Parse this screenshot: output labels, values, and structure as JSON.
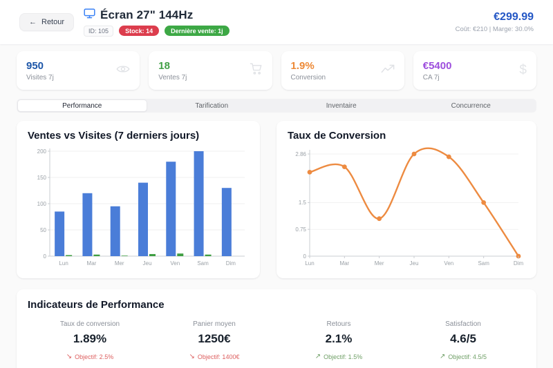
{
  "header": {
    "back_label": "Retour",
    "title": "Écran 27\" 144Hz",
    "id_label": "ID: 105",
    "stock_badge": "Stock: 14",
    "last_sale_badge": "Dernière vente: 1j",
    "price": "€299.99",
    "cost_margin": "Coût: €210 | Marge: 30.0%"
  },
  "stats": [
    {
      "value": "950",
      "label": "Visites 7j",
      "icon": "eye-icon",
      "color": "#1d56a8"
    },
    {
      "value": "18",
      "label": "Ventes 7j",
      "icon": "cart-icon",
      "color": "#43a047"
    },
    {
      "value": "1.9%",
      "label": "Conversion",
      "icon": "activity-icon",
      "color": "#ed8936"
    },
    {
      "value": "€5400",
      "label": "CA 7j",
      "icon": "dollar-icon",
      "color": "#9d4edd"
    }
  ],
  "tabs": [
    {
      "label": "Performance",
      "active": true
    },
    {
      "label": "Tarification",
      "active": false
    },
    {
      "label": "Inventaire",
      "active": false
    },
    {
      "label": "Concurrence",
      "active": false
    }
  ],
  "chart_data": [
    {
      "type": "bar",
      "title": "Ventes vs Visites (7 derniers jours)",
      "categories": [
        "Lun",
        "Mar",
        "Mer",
        "Jeu",
        "Ven",
        "Sam",
        "Dim"
      ],
      "series": [
        {
          "name": "Visites",
          "color": "#4a7dd8",
          "values": [
            85,
            120,
            95,
            140,
            180,
            200,
            130
          ]
        },
        {
          "name": "Ventes",
          "color": "#3f9e42",
          "values": [
            2,
            3,
            1,
            4,
            5,
            3,
            0
          ]
        }
      ],
      "ylim": [
        0,
        200
      ],
      "yticks": [
        0,
        50,
        100,
        150,
        200
      ],
      "grid": true,
      "legend": "none"
    },
    {
      "type": "line",
      "title": "Taux de Conversion",
      "categories": [
        "Lun",
        "Mar",
        "Mer",
        "Jeu",
        "Ven",
        "Sam",
        "Dim"
      ],
      "series": [
        {
          "name": "Taux de conversion",
          "color": "#ed8b41",
          "values": [
            2.35,
            2.5,
            1.05,
            2.86,
            2.78,
            1.5,
            0
          ]
        }
      ],
      "ylim": [
        0,
        2.86
      ],
      "yticks": [
        0,
        0.75,
        1.5,
        2.86
      ],
      "grid": true,
      "legend": "none"
    }
  ],
  "kpi_section": {
    "title": "Indicateurs de Performance",
    "kpis": [
      {
        "label": "Taux de conversion",
        "value": "1.89%",
        "objective": "Objectif: 2.5%",
        "trend": "down",
        "color": "#dd5f5f"
      },
      {
        "label": "Panier moyen",
        "value": "1250€",
        "objective": "Objectif: 1400€",
        "trend": "down",
        "color": "#dd5f5f"
      },
      {
        "label": "Retours",
        "value": "2.1%",
        "objective": "Objectif: 1.5%",
        "trend": "up",
        "color": "#6f9f66"
      },
      {
        "label": "Satisfaction",
        "value": "4.6/5",
        "objective": "Objectif: 4.5/5",
        "trend": "up",
        "color": "#6f9f66"
      }
    ]
  }
}
